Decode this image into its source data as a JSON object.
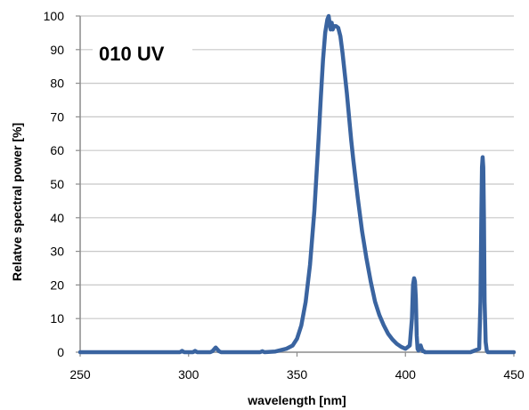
{
  "chart_data": {
    "type": "line",
    "title": "010 UV",
    "xlabel": "wavelength [nm]",
    "ylabel": "Relatve spectral power [%]",
    "xlim": [
      250,
      450
    ],
    "ylim": [
      0,
      100
    ],
    "x_ticks": [
      250,
      300,
      350,
      400,
      450
    ],
    "y_ticks": [
      0,
      10,
      20,
      30,
      40,
      50,
      60,
      70,
      80,
      90,
      100
    ],
    "grid": "horizontal",
    "legend": "none",
    "colors": {
      "line": "#3a64a0",
      "grid": "#c8c8c8",
      "axis": "#8c8c8c"
    },
    "series": [
      {
        "x": [
          250,
          296,
          297,
          298,
          300,
          302,
          303,
          304,
          310,
          311,
          312.5,
          314,
          315,
          320,
          333,
          334,
          335,
          340,
          345,
          348,
          350,
          352,
          354,
          356,
          358,
          359,
          360,
          361,
          362,
          363,
          364,
          364.6,
          365,
          365.5,
          366,
          366.5,
          367,
          367.5,
          368,
          369,
          370,
          371,
          372,
          373,
          374,
          375,
          376,
          378,
          380,
          382,
          384,
          386,
          388,
          390,
          392,
          394,
          396,
          398,
          400,
          402,
          403,
          403.5,
          404,
          404.4,
          404.8,
          405.2,
          405.6,
          406,
          406.5,
          407,
          407.5,
          408,
          408.5,
          409,
          410,
          415,
          420,
          425,
          430,
          434,
          434.6,
          435,
          435.3,
          435.6,
          435.9,
          436.2,
          436.5,
          437,
          437.5,
          438,
          440,
          445,
          450
        ],
        "y": [
          0,
          0,
          0.4,
          0,
          0,
          0,
          0.4,
          0,
          0,
          0.3,
          1.4,
          0.3,
          0,
          0,
          0,
          0.3,
          0,
          0.2,
          1,
          2,
          4,
          8,
          15,
          26,
          42,
          53,
          64,
          76,
          87,
          95,
          99,
          100,
          98,
          96,
          98,
          96,
          97,
          97,
          97,
          96.5,
          94,
          89,
          83,
          77,
          70,
          63,
          57,
          46,
          36,
          28,
          21,
          15,
          11,
          8,
          5.5,
          3.8,
          2.5,
          1.6,
          1,
          2,
          10,
          20,
          22,
          21,
          16,
          5,
          1,
          0.5,
          1.5,
          2,
          1,
          0.3,
          0.3,
          0,
          0,
          0,
          0,
          0,
          0,
          1,
          15,
          40,
          55,
          58,
          55,
          40,
          15,
          3,
          0.5,
          0,
          0,
          0,
          0
        ]
      }
    ]
  }
}
